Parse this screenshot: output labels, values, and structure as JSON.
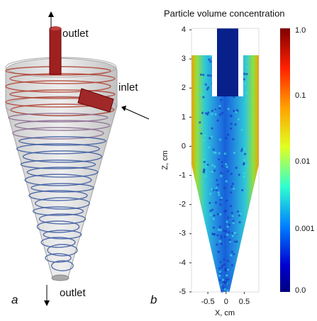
{
  "panel_a": {
    "label": "a",
    "outlet_top": "outlet",
    "inlet": "inlet",
    "outlet_bottom": "outlet"
  },
  "panel_b": {
    "label": "b",
    "title": "Particle volume concentration",
    "xlabel": "X, cm",
    "ylabel": "Z, cm",
    "xlim": [
      -0.95,
      0.9
    ],
    "ylim": [
      -5,
      4.05
    ],
    "xticks": [
      -0.5,
      0,
      0.5
    ],
    "yticks": [
      -5,
      -4,
      -3,
      -2,
      -1,
      0,
      1,
      2,
      3,
      4
    ],
    "colorbar_labels": [
      "1.0",
      "0.1",
      "0.01",
      "0.001",
      "0.0"
    ]
  }
}
